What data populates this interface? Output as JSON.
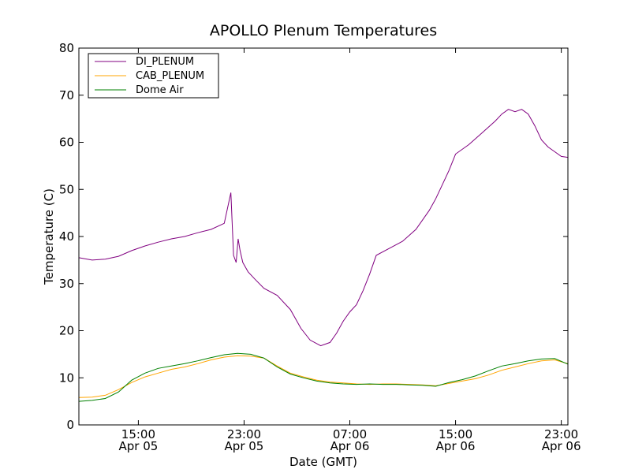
{
  "chart_data": {
    "type": "line",
    "title": "APOLLO Plenum Temperatures",
    "xlabel": "Date (GMT)",
    "ylabel": "Temperature (C)",
    "x_unit": "hours since Apr 05 00:00 GMT",
    "xlim": [
      10.5,
      47.5
    ],
    "ylim": [
      0,
      80
    ],
    "yticks": [
      0,
      10,
      20,
      30,
      40,
      50,
      60,
      70,
      80
    ],
    "xticks": [
      {
        "value": 15,
        "time": "15:00",
        "date": "Apr 05"
      },
      {
        "value": 23,
        "time": "23:00",
        "date": "Apr 05"
      },
      {
        "value": 31,
        "time": "07:00",
        "date": "Apr 06"
      },
      {
        "value": 39,
        "time": "15:00",
        "date": "Apr 06"
      },
      {
        "value": 47,
        "time": "23:00",
        "date": "Apr 06"
      }
    ],
    "legend_position": "top-left",
    "grid": false,
    "series": [
      {
        "name": "DI_PLENUM",
        "color": "#800080",
        "x": [
          10.5,
          11.5,
          12.5,
          13.5,
          14.5,
          15.5,
          16.5,
          17.5,
          18.5,
          19.5,
          20.5,
          21.5,
          22.0,
          22.2,
          22.4,
          22.55,
          22.7,
          22.9,
          23.1,
          23.3,
          23.8,
          24.5,
          25.5,
          26.5,
          27.3,
          28.0,
          28.8,
          29.5,
          30.0,
          30.5,
          31.0,
          31.5,
          32.0,
          32.5,
          33.0,
          34.0,
          35.0,
          36.0,
          37.0,
          37.5,
          38.0,
          38.5,
          39.0,
          40.0,
          41.0,
          42.0,
          42.5,
          43.0,
          43.5,
          44.0,
          44.5,
          45.0,
          45.5,
          46.0,
          46.5,
          47.0,
          47.5
        ],
        "y": [
          35.5,
          35.0,
          35.2,
          35.8,
          37.0,
          38.0,
          38.8,
          39.5,
          40.0,
          40.8,
          41.5,
          42.8,
          49.3,
          36.0,
          34.5,
          39.5,
          37.0,
          34.5,
          33.5,
          32.5,
          31.0,
          29.0,
          27.5,
          24.5,
          20.5,
          18.0,
          16.8,
          17.5,
          19.5,
          22.0,
          24.0,
          25.5,
          28.5,
          32.0,
          36.0,
          37.5,
          39.0,
          41.5,
          45.5,
          48.0,
          51.0,
          54.0,
          57.5,
          59.5,
          62.0,
          64.5,
          66.0,
          67.0,
          66.5,
          67.0,
          66.0,
          63.5,
          60.5,
          59.0,
          58.0,
          57.0,
          56.8
        ]
      },
      {
        "name": "CAB_PLENUM",
        "color": "#ffa500",
        "x": [
          10.5,
          11.5,
          12.5,
          13.5,
          14.5,
          15.5,
          16.5,
          17.5,
          18.5,
          19.5,
          20.5,
          21.5,
          22.5,
          23.5,
          24.5,
          25.5,
          26.5,
          27.5,
          28.5,
          29.5,
          30.5,
          31.5,
          32.5,
          33.5,
          34.5,
          35.5,
          36.5,
          37.5,
          38.5,
          39.5,
          40.5,
          41.5,
          42.5,
          43.5,
          44.5,
          45.5,
          46.5,
          47.5
        ],
        "y": [
          5.8,
          5.9,
          6.3,
          7.5,
          9.0,
          10.2,
          11.0,
          11.8,
          12.3,
          13.0,
          13.8,
          14.4,
          14.7,
          14.6,
          14.2,
          12.5,
          11.0,
          10.2,
          9.5,
          9.1,
          8.9,
          8.7,
          8.6,
          8.7,
          8.7,
          8.6,
          8.5,
          8.3,
          8.8,
          9.3,
          9.8,
          10.6,
          11.6,
          12.3,
          13.0,
          13.6,
          13.8,
          13.0
        ]
      },
      {
        "name": "Dome Air",
        "color": "#008000",
        "x": [
          10.5,
          11.5,
          12.5,
          13.5,
          14.5,
          15.5,
          16.5,
          17.5,
          18.5,
          19.5,
          20.5,
          21.5,
          22.5,
          23.5,
          24.5,
          25.5,
          26.5,
          27.5,
          28.5,
          29.5,
          30.5,
          31.5,
          32.5,
          33.5,
          34.5,
          35.5,
          36.5,
          37.5,
          38.5,
          39.5,
          40.5,
          41.5,
          42.5,
          43.5,
          44.5,
          45.5,
          46.5,
          47.5
        ],
        "y": [
          5.0,
          5.2,
          5.6,
          7.0,
          9.5,
          11.0,
          12.0,
          12.5,
          13.0,
          13.6,
          14.3,
          14.9,
          15.2,
          15.0,
          14.2,
          12.3,
          10.8,
          10.0,
          9.3,
          8.9,
          8.7,
          8.6,
          8.7,
          8.6,
          8.6,
          8.5,
          8.4,
          8.2,
          9.0,
          9.6,
          10.4,
          11.5,
          12.5,
          13.0,
          13.6,
          14.0,
          14.1,
          12.9
        ]
      }
    ]
  }
}
